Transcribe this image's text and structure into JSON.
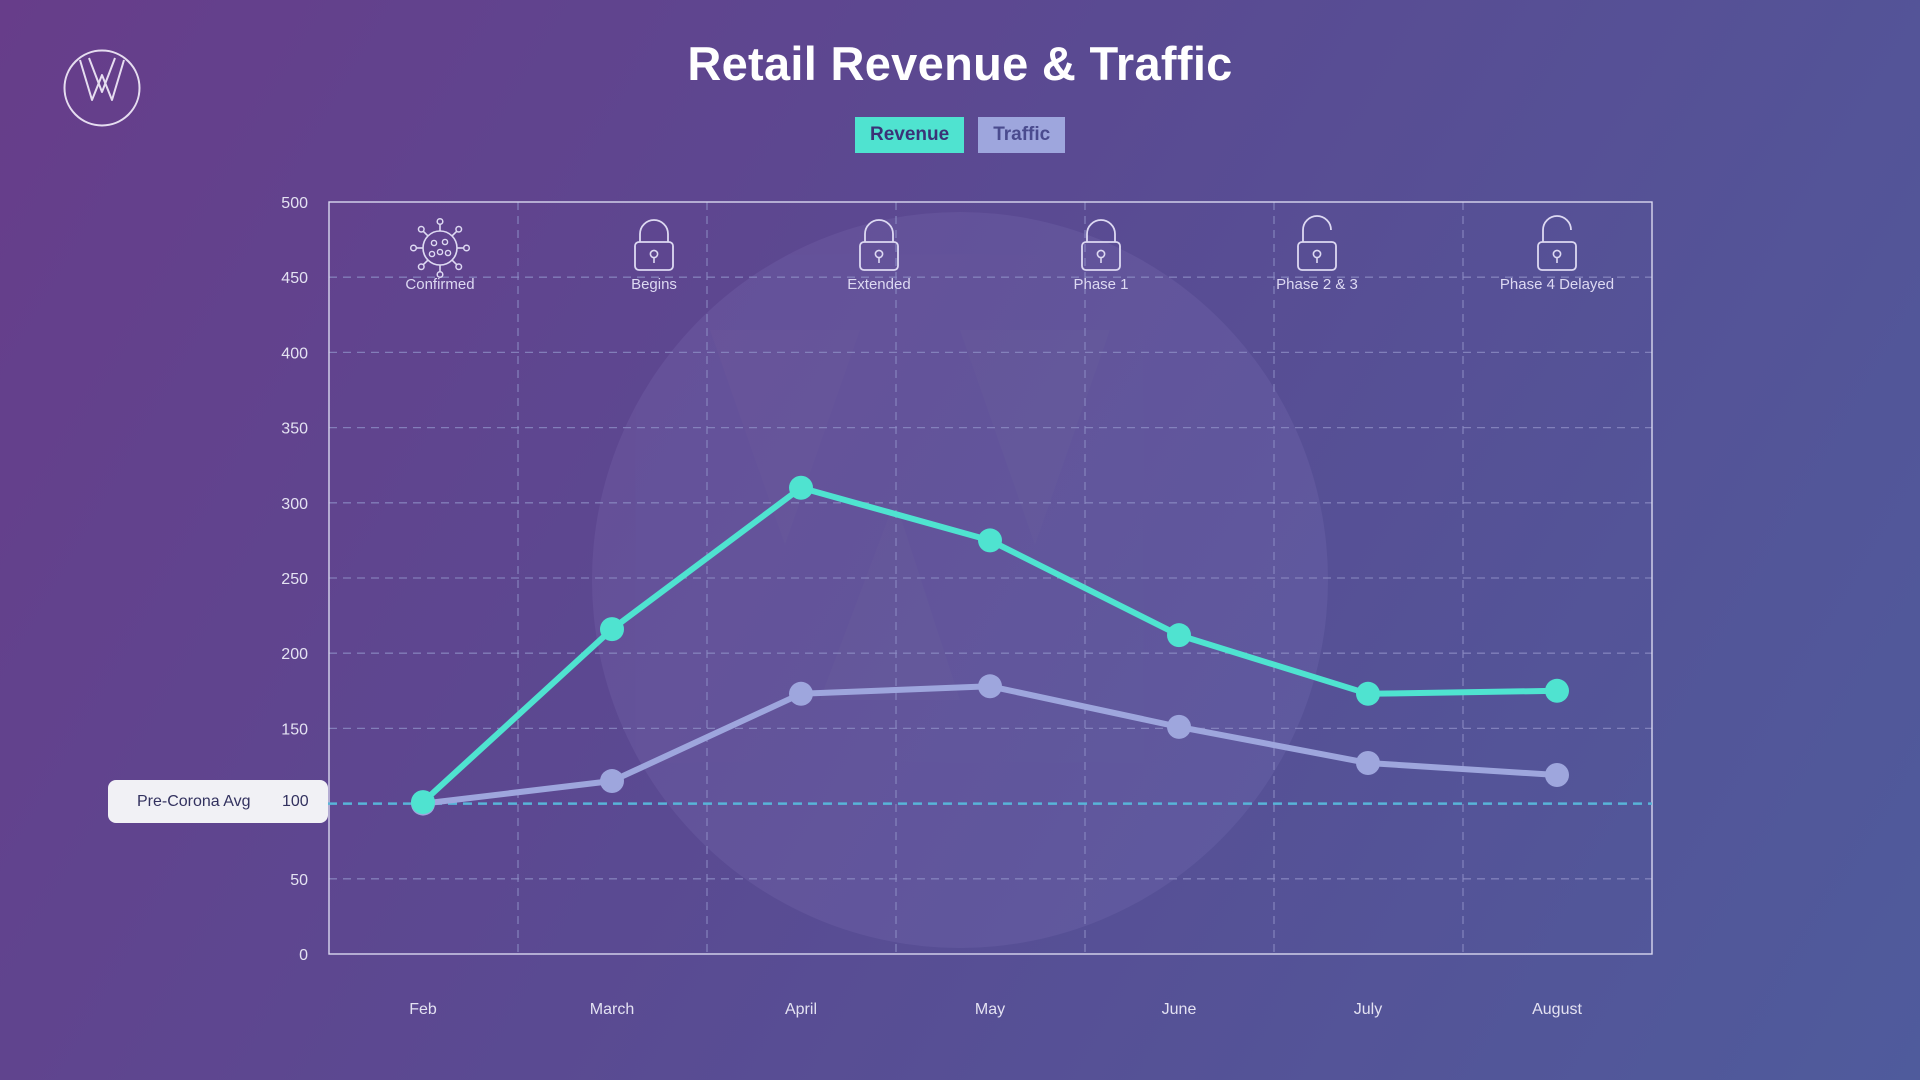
{
  "chart_data": {
    "type": "line",
    "title": "Retail Revenue & Traffic",
    "categories": [
      "Feb",
      "March",
      "April",
      "May",
      "June",
      "July",
      "August"
    ],
    "series": [
      {
        "name": "Revenue",
        "color": "#4fe3d0",
        "values": [
          101,
          216,
          310,
          275,
          212,
          173,
          175
        ]
      },
      {
        "name": "Traffic",
        "color": "#9ea6dd",
        "values": [
          100,
          115,
          173,
          178,
          151,
          127,
          119
        ]
      }
    ],
    "ylim": [
      0,
      500
    ],
    "yticks": [
      0,
      50,
      100,
      150,
      200,
      250,
      300,
      350,
      400,
      450,
      500
    ],
    "reference_line": {
      "label": "Pre-Corona Avg",
      "value": 100,
      "display": "100"
    },
    "milestones": [
      {
        "label": "Confirmed",
        "icon": "virus-icon"
      },
      {
        "label": "Begins",
        "icon": "lock-closed-icon"
      },
      {
        "label": "Extended",
        "icon": "lock-closed-icon"
      },
      {
        "label": "Phase 1",
        "icon": "lock-closed-icon"
      },
      {
        "label": "Phase 2 & 3",
        "icon": "lock-open-icon"
      },
      {
        "label": "Phase 4 Delayed",
        "icon": "lock-open-icon"
      }
    ],
    "grid": true,
    "legend_position": "top-center"
  },
  "colors": {
    "revenue": "#4fe3d0",
    "traffic": "#9ea6dd",
    "reference_line": "#58b4d8",
    "axis_text": "#e4e2f2",
    "grid": "#8c8cc4"
  },
  "logo_icon": "w-logo-icon",
  "watermark_icon": "w-watermark-icon"
}
